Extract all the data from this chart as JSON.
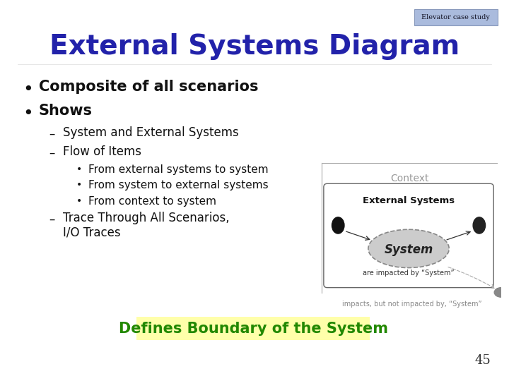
{
  "bg_color": "#ffffff",
  "title": "External Systems Diagram",
  "title_color": "#2222aa",
  "title_fontsize": 28,
  "badge_text": "Elevator case study",
  "badge_bg": "#aabbdd",
  "badge_border": "#8899bb",
  "bullet1": "Composite of all scenarios",
  "bullet2": "Shows",
  "dash1": "System and External Systems",
  "dash2": "Flow of Items",
  "sub1": "From external systems to system",
  "sub2": "From system to external systems",
  "sub3": "From context to system",
  "dash3a": "Trace Through All Scenarios,",
  "dash3b": "I/O Traces",
  "highlight_text": "Defines Boundary of the System",
  "highlight_bg": "#ffffaa",
  "highlight_color": "#228800",
  "page_num": "45",
  "text_color": "#111111",
  "bullet_color": "#111111"
}
